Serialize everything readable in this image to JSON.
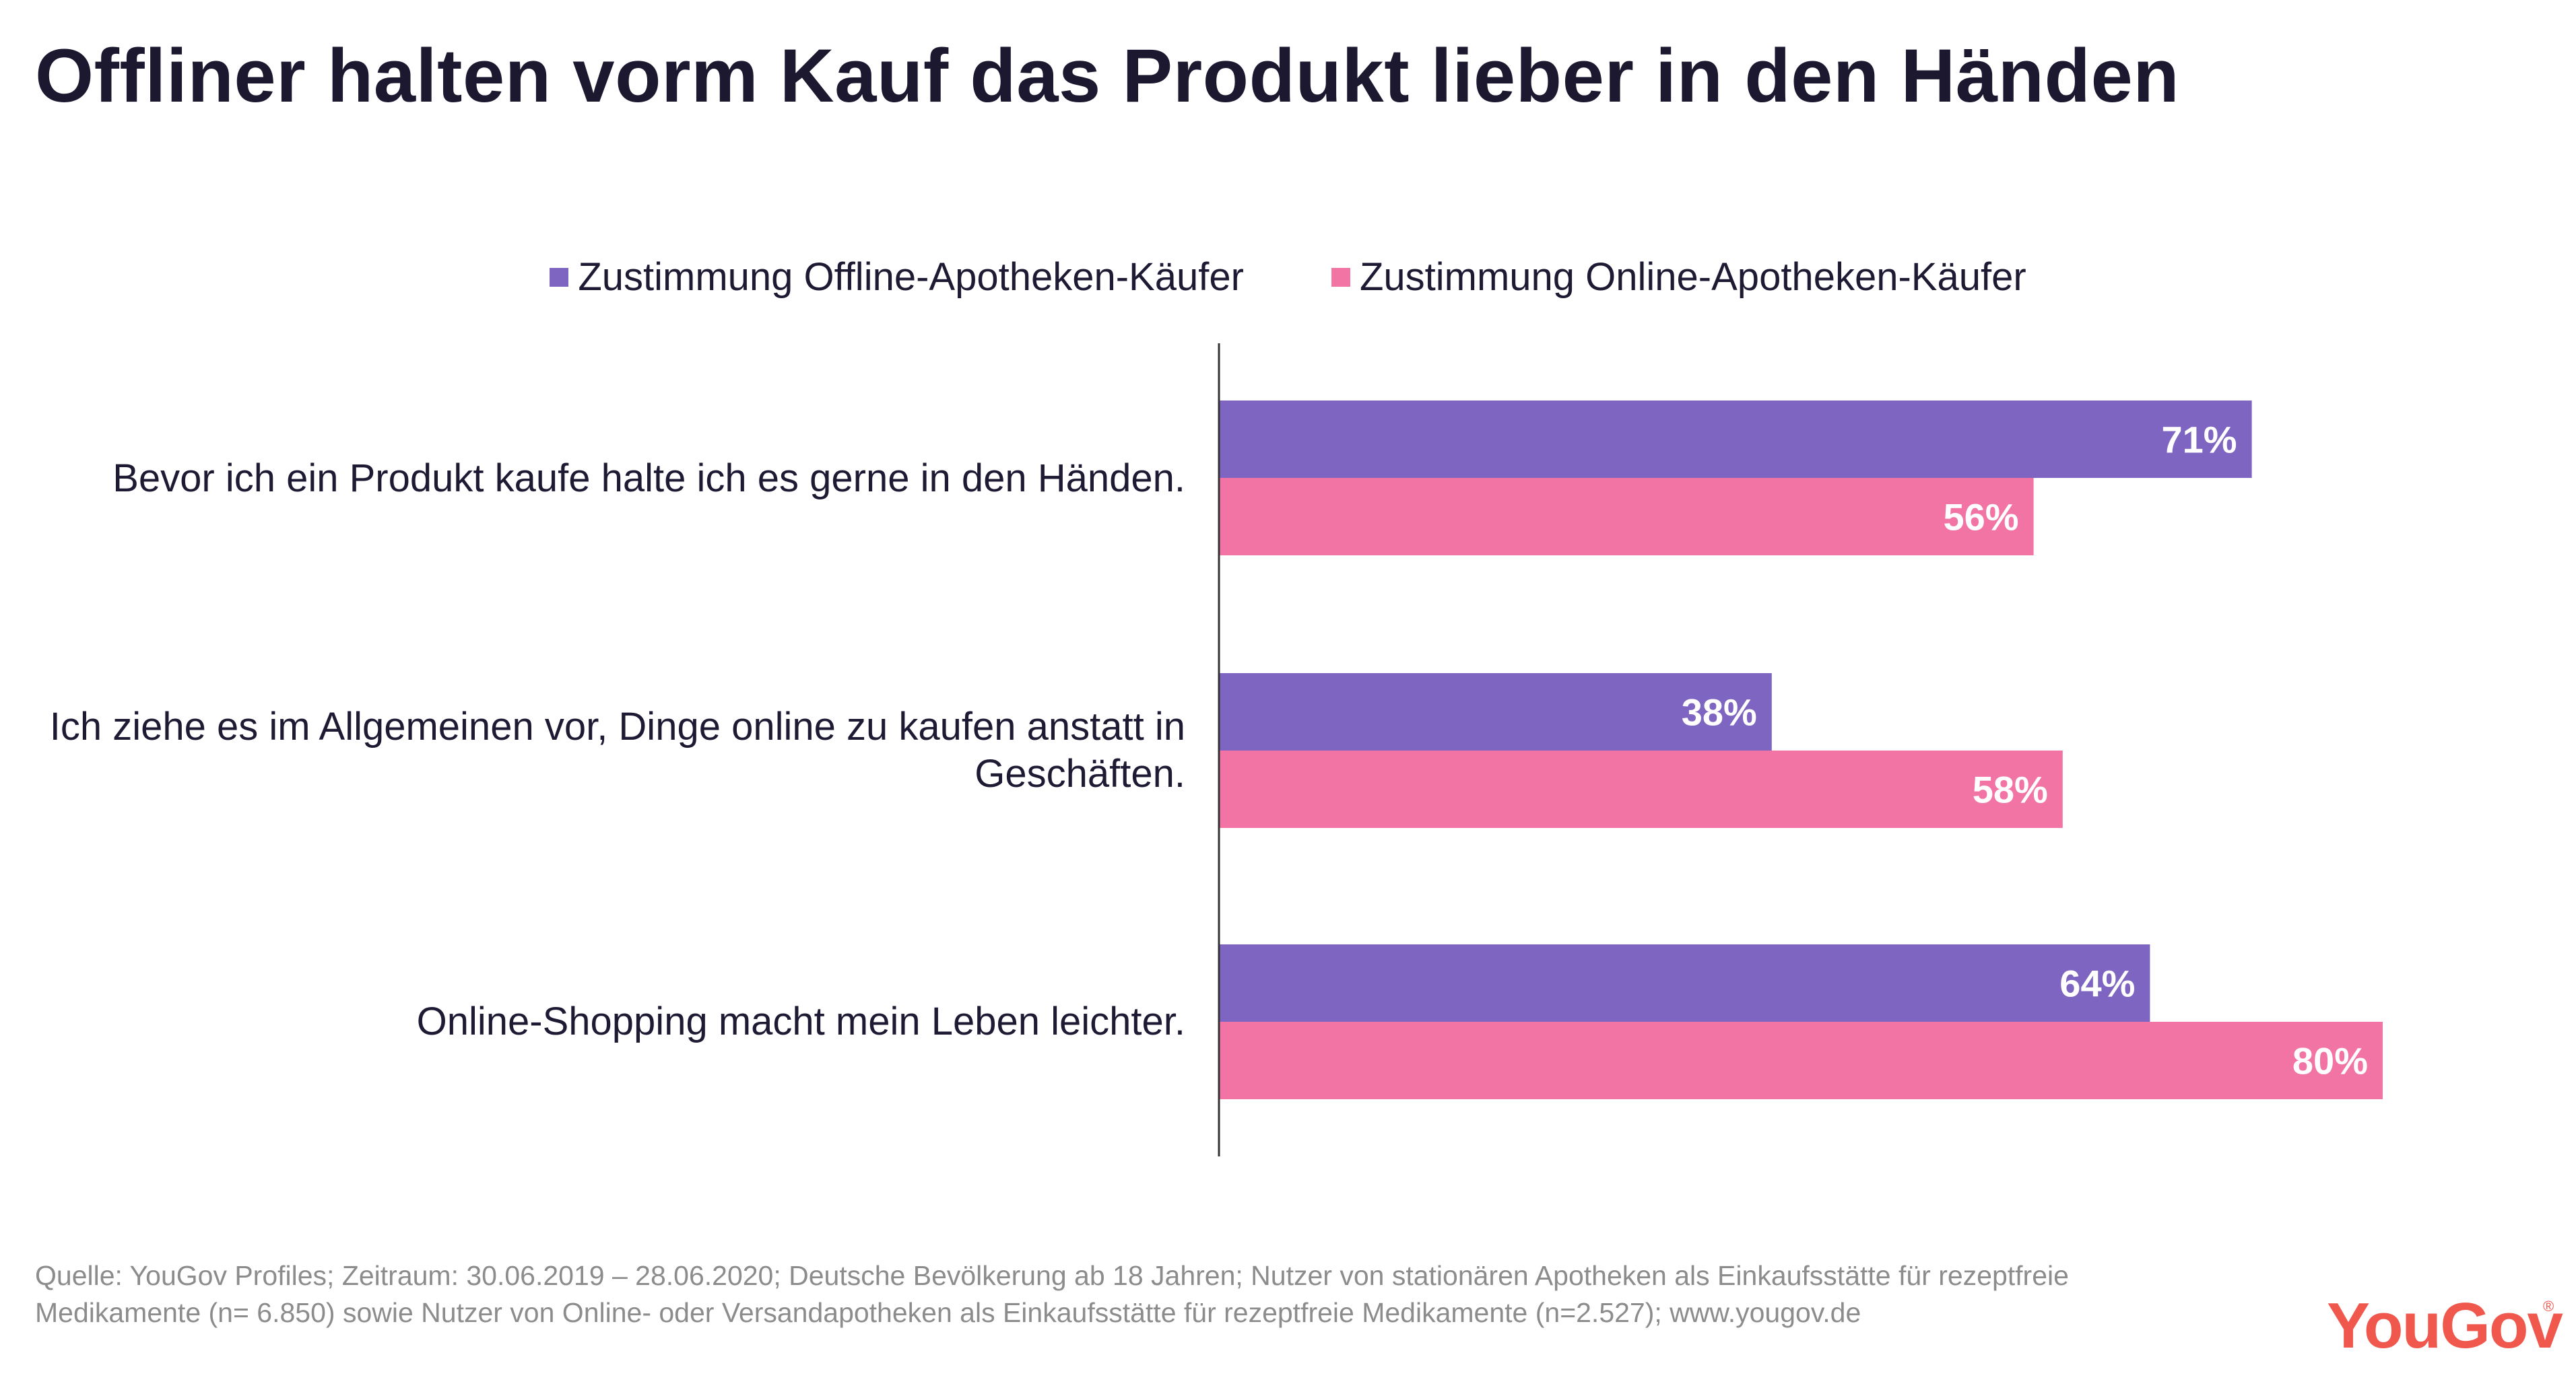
{
  "title": "Offliner halten vorm Kauf das Produkt lieber in den Händen",
  "source": "Quelle: YouGov Profiles; Zeitraum: 30.06.2019 – 28.06.2020; Deutsche Bevölkerung ab 18 Jahren; Nutzer von stationären Apotheken als Einkaufsstätte für rezeptfreie Medikamente (n= 6.850) sowie Nutzer von Online- oder Versandapotheken als Einkaufsstätte für rezeptfreie Medikamente (n=2.527); www.yougov.de",
  "brand": "YouGov",
  "brand_mark": "®",
  "colors": {
    "offline": "#7e65c2",
    "online": "#f274a4",
    "axis": "#333333",
    "title": "#1c1830",
    "brand": "#f0574d"
  },
  "chart_data": {
    "type": "bar",
    "orientation": "horizontal",
    "categories": [
      "Bevor ich ein Produkt kaufe halte ich es gerne in den Händen.",
      "Ich ziehe es im Allgemeinen vor, Dinge online zu kaufen anstatt in Geschäften.",
      "Online-Shopping macht mein Leben leichter."
    ],
    "series": [
      {
        "name": "Zustimmung Offline-Apotheken-Käufer",
        "values": [
          71,
          38,
          64
        ],
        "labels": [
          "71%",
          "38%",
          "64%"
        ],
        "color": "#7e65c2"
      },
      {
        "name": "Zustimmung Online-Apotheken-Käufer",
        "values": [
          56,
          58,
          80
        ],
        "labels": [
          "56%",
          "58%",
          "80%"
        ],
        "color": "#f274a4"
      }
    ],
    "xlim": [
      0,
      100
    ],
    "legend": "top-center",
    "grid": false
  }
}
